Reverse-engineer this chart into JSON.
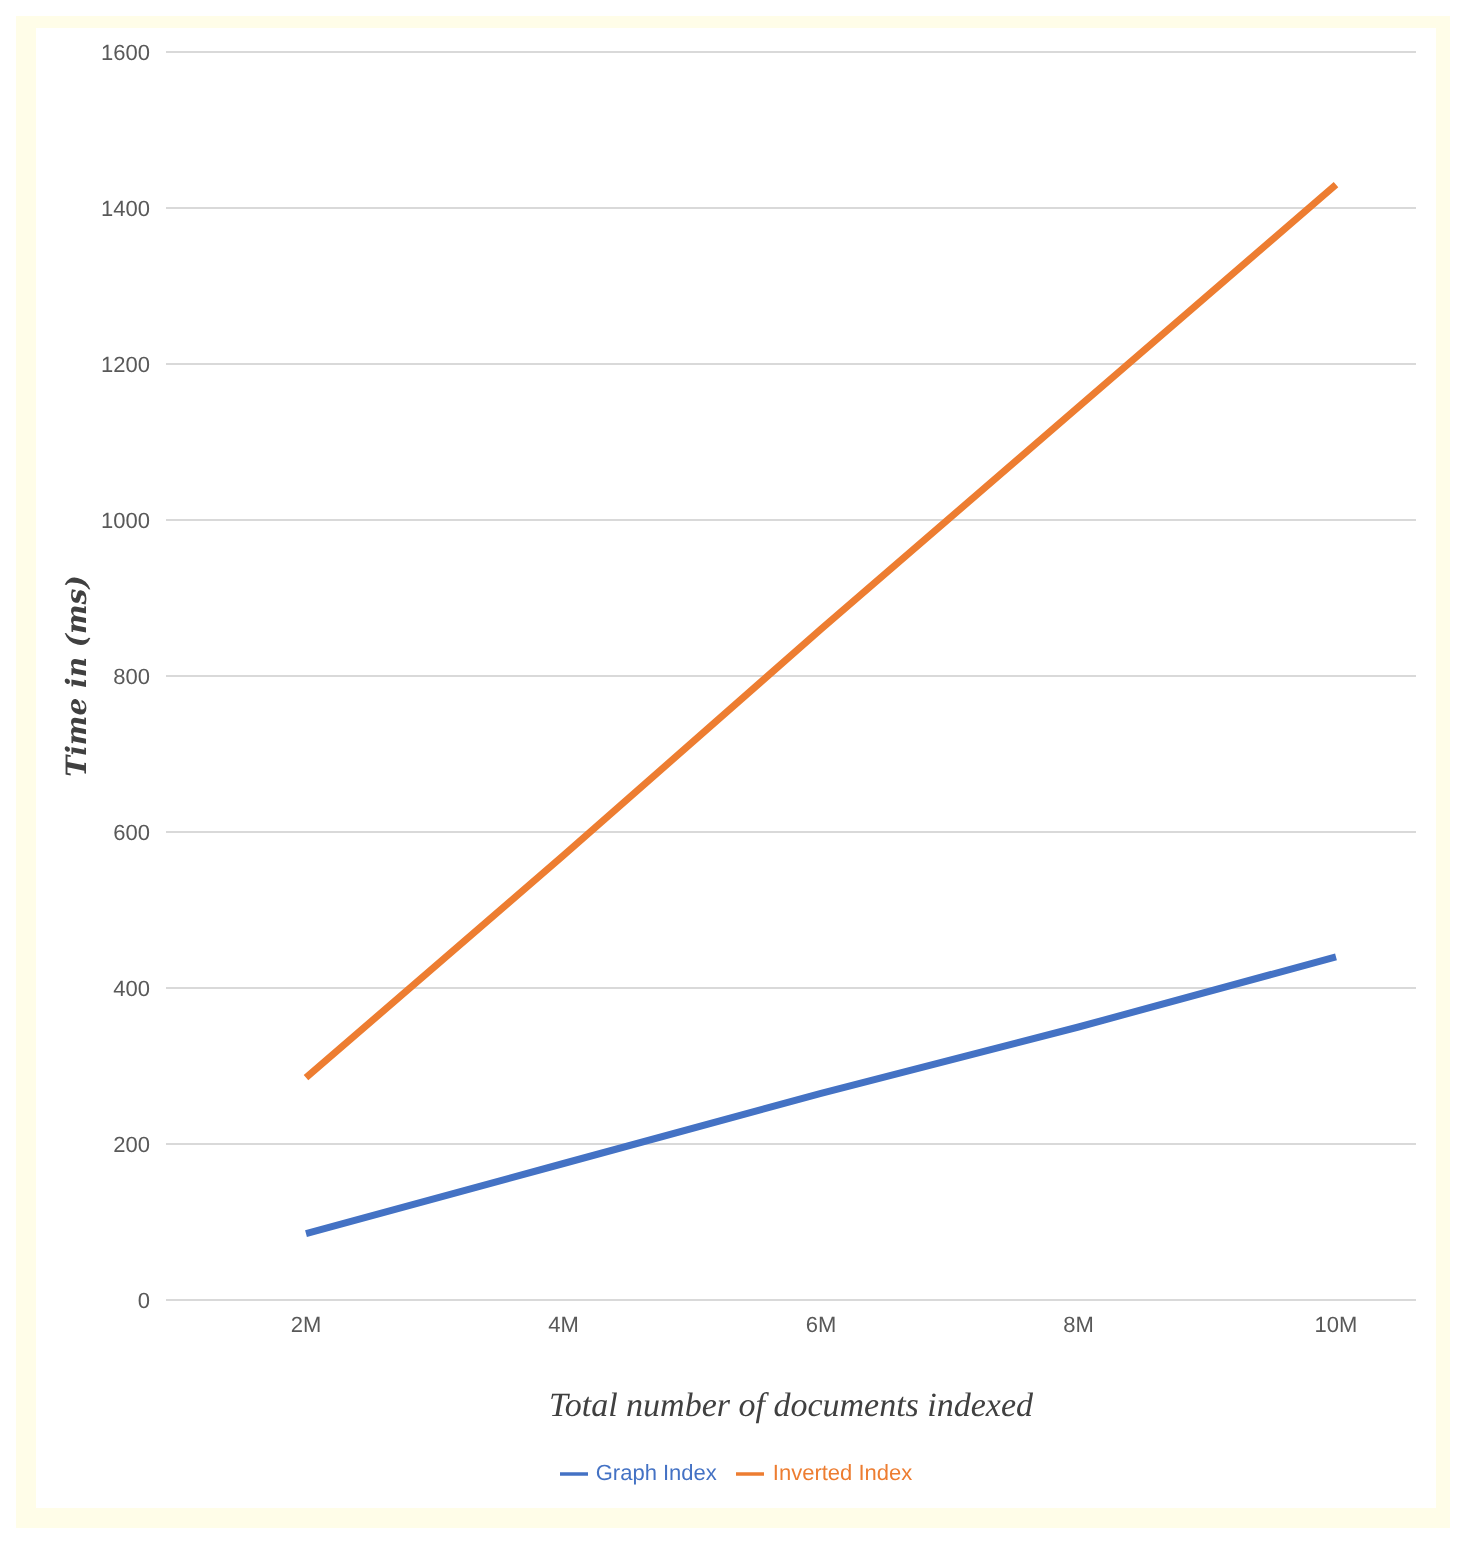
{
  "chart_data": {
    "type": "line",
    "xlabel": "Total number of documents indexed",
    "ylabel": "Time in  (ms)",
    "categories": [
      "2M",
      "4M",
      "6M",
      "8M",
      "10M"
    ],
    "series": [
      {
        "name": "Graph Index",
        "color": "#4472c4",
        "values": [
          85,
          175,
          265,
          350,
          440
        ]
      },
      {
        "name": "Inverted Index",
        "color": "#ed7d31",
        "values": [
          285,
          570,
          860,
          1145,
          1430
        ]
      }
    ],
    "ylim": [
      0,
      1600
    ],
    "yticks": [
      0,
      200,
      400,
      600,
      800,
      1000,
      1200,
      1400,
      1600
    ],
    "grid": "y",
    "legend": "bottom",
    "marker": "none",
    "line_style": "solid"
  }
}
